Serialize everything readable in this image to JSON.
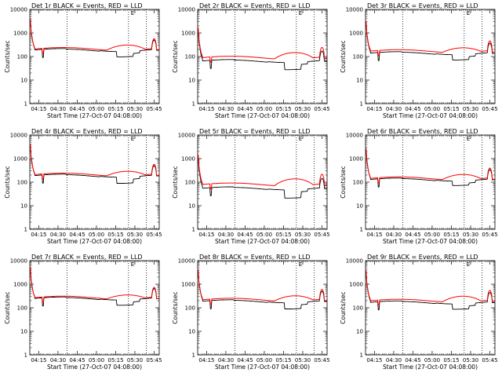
{
  "chart_data": {
    "type": "line",
    "panel_grid": "3x3",
    "shared": {
      "title_suffix": "BLACK = Events, RED = LLD",
      "ylabel": "Counts/sec",
      "xlabel": "Start Time (27-Oct-07 04:08:00)",
      "y_scale": "log",
      "ylim": [
        1,
        10000
      ],
      "y_ticks": [
        1,
        10,
        100,
        1000,
        10000
      ],
      "y_tick_labels": [
        "1",
        "10",
        "100",
        "1000",
        "10000"
      ],
      "x_range_min": [
        0,
        101
      ],
      "x_ticks_min": [
        7,
        22,
        37,
        52,
        67,
        82,
        97
      ],
      "x_tick_labels": [
        "04:15",
        "04:30",
        "04:45",
        "05:00",
        "05:15",
        "05:30",
        "05:45"
      ],
      "marker_label": "E",
      "series_colors": {
        "events": "#000000",
        "lld": "#ff0000"
      }
    },
    "panels": [
      {
        "title": "Det 1r",
        "events_base": 190,
        "lld_base": 210,
        "events_dip": 0.6,
        "lld_bump": 1.7,
        "dotted_min": [
          29,
          77,
          91
        ]
      },
      {
        "title": "Det 2r",
        "events_base": 65,
        "lld_base": 90,
        "events_dip": 0.5,
        "lld_bump": 1.9,
        "dotted_min": [
          29,
          77,
          91
        ]
      },
      {
        "title": "Det 3r",
        "events_base": 140,
        "lld_base": 170,
        "events_dip": 0.6,
        "lld_bump": 1.6,
        "dotted_min": [
          29,
          77,
          91
        ]
      },
      {
        "title": "Det 4r",
        "events_base": 190,
        "lld_base": 210,
        "events_dip": 0.55,
        "lld_bump": 1.6,
        "dotted_min": [
          29,
          77,
          91
        ]
      },
      {
        "title": "Det 5r",
        "events_base": 55,
        "lld_base": 80,
        "events_dip": 0.45,
        "lld_bump": 2.0,
        "dotted_min": [
          29,
          77,
          91
        ]
      },
      {
        "title": "Det 6r",
        "events_base": 130,
        "lld_base": 145,
        "events_dip": 0.65,
        "lld_bump": 1.7,
        "dotted_min": [
          29,
          77,
          91
        ]
      },
      {
        "title": "Det 7r",
        "events_base": 250,
        "lld_base": 270,
        "events_dip": 0.6,
        "lld_bump": 1.5,
        "dotted_min": [
          29,
          77,
          91
        ]
      },
      {
        "title": "Det 8r",
        "events_base": 190,
        "lld_base": 220,
        "events_dip": 0.55,
        "lld_bump": 1.7,
        "dotted_min": [
          29,
          77,
          91
        ]
      },
      {
        "title": "Det 9r",
        "events_base": 170,
        "lld_base": 200,
        "events_dip": 0.6,
        "lld_bump": 1.8,
        "dotted_min": [
          29,
          77,
          91
        ]
      }
    ]
  }
}
